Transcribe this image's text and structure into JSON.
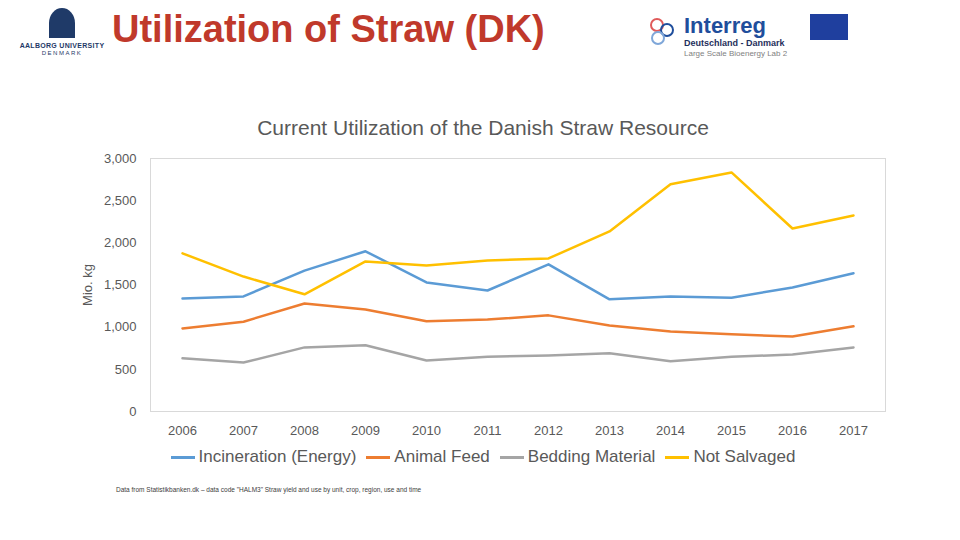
{
  "slide": {
    "title": "Utilization of Straw (DK)",
    "logos": [
      [
        "AALBORG UNIVERSITY",
        "DENMARK"
      ],
      [
        "Interreg",
        "Deutschland - Danmark",
        "Large Scale Bioenergy Lab 2"
      ]
    ],
    "note": "Data from Statistikbanken.dk – data code \"HALM3\" Straw yield and use by unit, crop, region, use and time"
  },
  "chart_data": {
    "type": "line",
    "title": "Current Utilization of the Danish Straw Resource",
    "y_label": "Mio. kg",
    "categories": [
      "2006",
      "2007",
      "2008",
      "2009",
      "2010",
      "2011",
      "2012",
      "2013",
      "2014",
      "2015",
      "2016",
      "2017"
    ],
    "series": [
      {
        "name": "Incineration (Energy)",
        "color": "#5b9bd5",
        "values": [
          1340,
          1365,
          1670,
          1900,
          1530,
          1435,
          1745,
          1330,
          1365,
          1350,
          1470,
          1640
        ]
      },
      {
        "name": "Animal Feed",
        "color": "#ed7d31",
        "values": [
          985,
          1065,
          1280,
          1210,
          1070,
          1090,
          1140,
          1020,
          950,
          915,
          890,
          1010
        ]
      },
      {
        "name": "Bedding Material",
        "color": "#a5a5a5",
        "values": [
          630,
          580,
          760,
          785,
          605,
          650,
          665,
          690,
          595,
          650,
          675,
          760
        ]
      },
      {
        "name": "Not Salvaged",
        "color": "#ffc000",
        "values": [
          1875,
          1600,
          1390,
          1780,
          1730,
          1790,
          1815,
          2135,
          2695,
          2835,
          2170,
          2325
        ]
      }
    ],
    "ylim": [
      0,
      3000
    ],
    "yticks": [
      0,
      500,
      1000,
      1500,
      2000,
      2500,
      3000
    ],
    "grid": false,
    "legend": "bottom"
  }
}
